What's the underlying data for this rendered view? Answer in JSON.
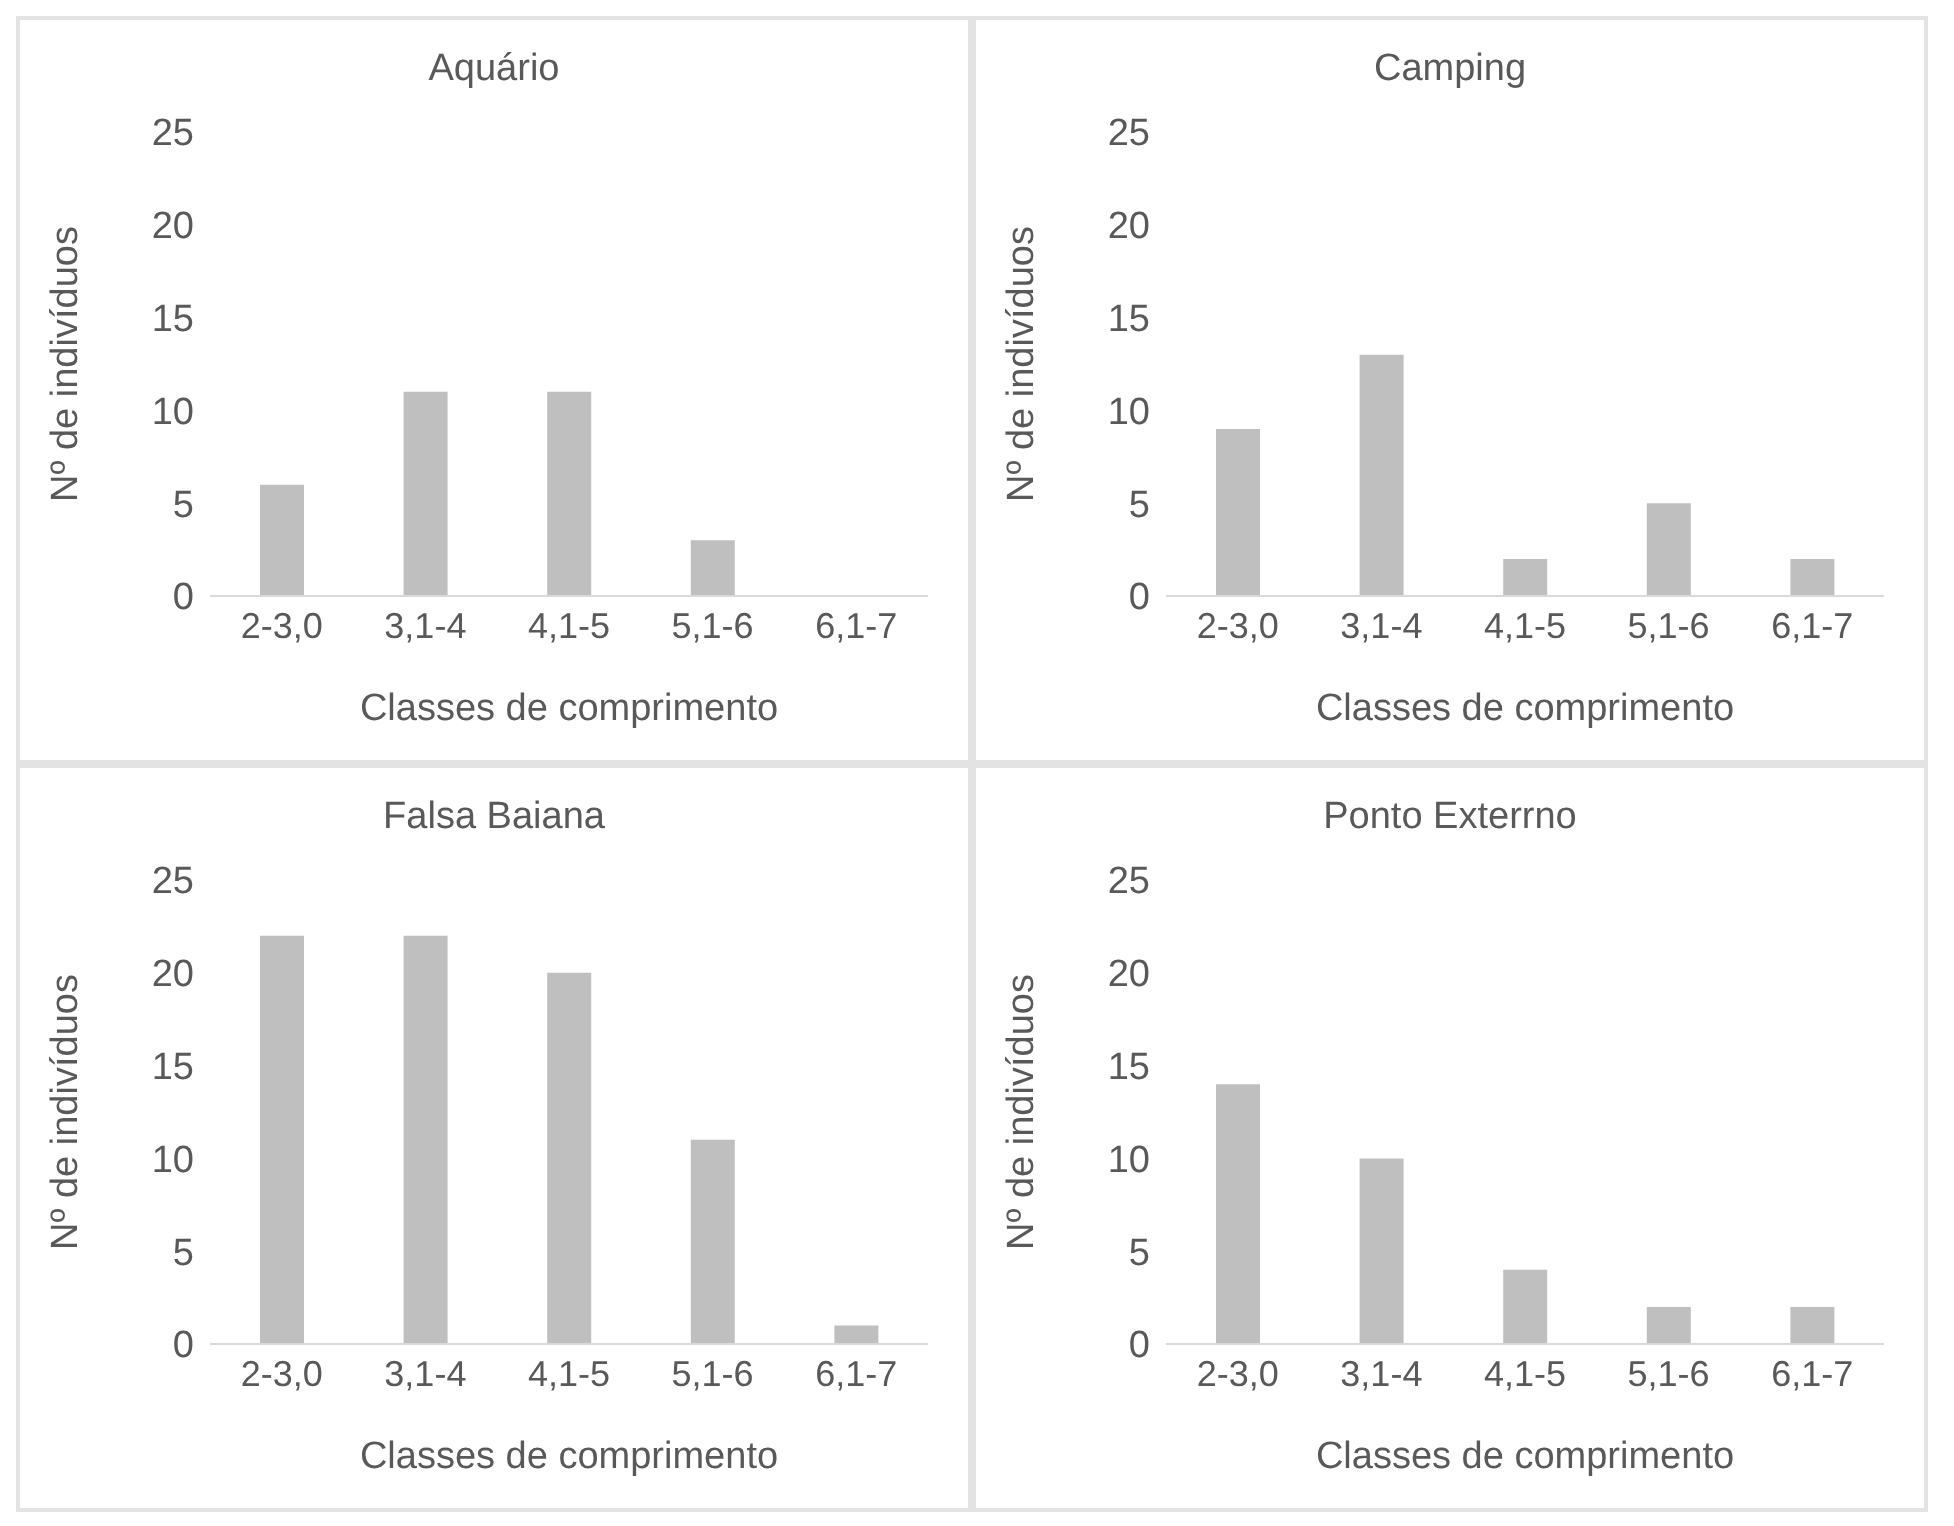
{
  "chart_data": [
    {
      "type": "bar",
      "title": "Aquário",
      "xlabel": "Classes de comprimento",
      "ylabel": "Nº de indivíduos",
      "categories": [
        "2-3,0",
        "3,1-4",
        "4,1-5",
        "5,1-6",
        "6,1-7"
      ],
      "values": [
        6,
        11,
        11,
        3,
        0
      ],
      "color": "#bfbfbf",
      "ylim": [
        0,
        25
      ],
      "yticks": [
        0,
        5,
        10,
        15,
        20,
        25
      ],
      "grid": false
    },
    {
      "type": "bar",
      "title": "Camping",
      "xlabel": "Classes de comprimento",
      "ylabel": "Nº de indivíduos",
      "categories": [
        "2-3,0",
        "3,1-4",
        "4,1-5",
        "5,1-6",
        "6,1-7"
      ],
      "values": [
        9,
        13,
        2,
        5,
        2
      ],
      "color": "#bfbfbf",
      "ylim": [
        0,
        25
      ],
      "yticks": [
        0,
        5,
        10,
        15,
        20,
        25
      ],
      "grid": false
    },
    {
      "type": "bar",
      "title": "Falsa Baiana",
      "xlabel": "Classes de comprimento",
      "ylabel": "Nº de indivíduos",
      "categories": [
        "2-3,0",
        "3,1-4",
        "4,1-5",
        "5,1-6",
        "6,1-7"
      ],
      "values": [
        22,
        22,
        20,
        11,
        1
      ],
      "color": "#bfbfbf",
      "ylim": [
        0,
        25
      ],
      "yticks": [
        0,
        5,
        10,
        15,
        20,
        25
      ],
      "grid": false
    },
    {
      "type": "bar",
      "title": "Ponto Exterrno",
      "xlabel": "Classes de comprimento",
      "ylabel": "Nº de indivíduos",
      "categories": [
        "2-3,0",
        "3,1-4",
        "4,1-5",
        "5,1-6",
        "6,1-7"
      ],
      "values": [
        14,
        10,
        4,
        2,
        2
      ],
      "color": "#bfbfbf",
      "ylim": [
        0,
        25
      ],
      "yticks": [
        0,
        5,
        10,
        15,
        20,
        25
      ],
      "grid": false
    }
  ]
}
